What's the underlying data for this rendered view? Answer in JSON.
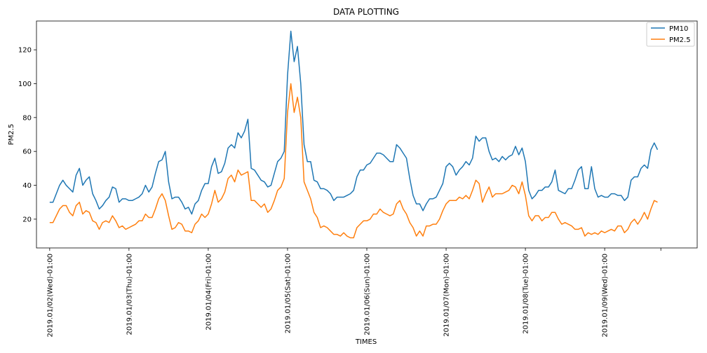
{
  "chart_data": {
    "type": "line",
    "title": "DATA PLOTTING",
    "xlabel": "TIMES",
    "ylabel": "PM2.5",
    "ylim": [
      3,
      137
    ],
    "yticks": [
      20,
      40,
      60,
      80,
      100,
      120
    ],
    "xlim": [
      -4,
      196
    ],
    "x_tick_positions": [
      0,
      24,
      48,
      72,
      96,
      120,
      144,
      168,
      185
    ],
    "x_tick_labels": [
      "2019.01/02(Wed)-01:00",
      "2019.01/03(Thu)-01:00",
      "2019.01/04(Fri)-01:00",
      "2019.01/05(Sat)-01:00",
      "2019.01/06(Sun)-01:00",
      "2019.01/07(Mon)-01:00",
      "2019.01/08(Tue)-01:00",
      "2019.01/09(Wed)-01:00",
      ""
    ],
    "grid": false,
    "legend": "top-right",
    "series": [
      {
        "name": "PM10",
        "color": "#1f77b4",
        "values": [
          30,
          30,
          35,
          40,
          43,
          40,
          38,
          36,
          46,
          50,
          40,
          43,
          45,
          35,
          31,
          26,
          28,
          31,
          33,
          39,
          38,
          30,
          32,
          32,
          31,
          31,
          32,
          33,
          35,
          40,
          36,
          39,
          47,
          54,
          55,
          60,
          42,
          32,
          33,
          33,
          30,
          26,
          27,
          23,
          29,
          31,
          37,
          41,
          41,
          51,
          56,
          47,
          48,
          53,
          62,
          64,
          62,
          71,
          68,
          72,
          79,
          50,
          49,
          46,
          43,
          42,
          39,
          40,
          47,
          54,
          56,
          60,
          105,
          131,
          113,
          122,
          100,
          64,
          54,
          54,
          43,
          42,
          38,
          38,
          37,
          35,
          31,
          33,
          33,
          33,
          34,
          35,
          37,
          45,
          49,
          49,
          52,
          53,
          56,
          59,
          59,
          58,
          56,
          54,
          54,
          64,
          62,
          59,
          56,
          44,
          34,
          29,
          29,
          25,
          29,
          32,
          32,
          33,
          37,
          41,
          51,
          53,
          51,
          46,
          49,
          51,
          54,
          52,
          56,
          69,
          66,
          68,
          68,
          60,
          55,
          56,
          54,
          57,
          55,
          57,
          58,
          63,
          58,
          62,
          54,
          37,
          32,
          34,
          37,
          37,
          39,
          39,
          42,
          49,
          37,
          36,
          35,
          38,
          38,
          43,
          49,
          51,
          38,
          38,
          51,
          38,
          33,
          34,
          33,
          33,
          35,
          35,
          34,
          34,
          31,
          33,
          43,
          45,
          45,
          50,
          52,
          50,
          61,
          65,
          61
        ]
      },
      {
        "name": "PM2.5",
        "color": "#ff7f0e",
        "values": [
          18,
          18,
          22,
          26,
          28,
          28,
          24,
          22,
          28,
          30,
          23,
          25,
          24,
          19,
          18,
          14,
          18,
          19,
          18,
          22,
          19,
          15,
          16,
          14,
          15,
          16,
          17,
          19,
          19,
          23,
          21,
          21,
          26,
          32,
          35,
          31,
          22,
          14,
          15,
          18,
          17,
          13,
          13,
          12,
          17,
          19,
          23,
          21,
          23,
          29,
          37,
          30,
          32,
          36,
          44,
          46,
          42,
          49,
          46,
          47,
          48,
          31,
          31,
          29,
          27,
          29,
          24,
          26,
          31,
          37,
          39,
          44,
          83,
          100,
          83,
          92,
          80,
          42,
          37,
          32,
          24,
          21,
          15,
          16,
          15,
          13,
          11,
          11,
          10,
          12,
          10,
          9,
          9,
          15,
          17,
          19,
          19,
          20,
          23,
          23,
          26,
          24,
          23,
          22,
          23,
          29,
          31,
          26,
          23,
          18,
          15,
          10,
          13,
          10,
          16,
          16,
          17,
          17,
          20,
          25,
          29,
          31,
          31,
          31,
          33,
          32,
          34,
          32,
          37,
          43,
          41,
          30,
          35,
          39,
          33,
          35,
          35,
          35,
          36,
          37,
          40,
          39,
          35,
          42,
          34,
          22,
          19,
          22,
          22,
          19,
          21,
          21,
          24,
          24,
          20,
          17,
          18,
          17,
          16,
          14,
          14,
          15,
          10,
          12,
          11,
          12,
          11,
          13,
          12,
          13,
          14,
          13,
          16,
          16,
          12,
          14,
          18,
          20,
          17,
          20,
          24,
          20,
          26,
          31,
          30
        ]
      }
    ]
  }
}
